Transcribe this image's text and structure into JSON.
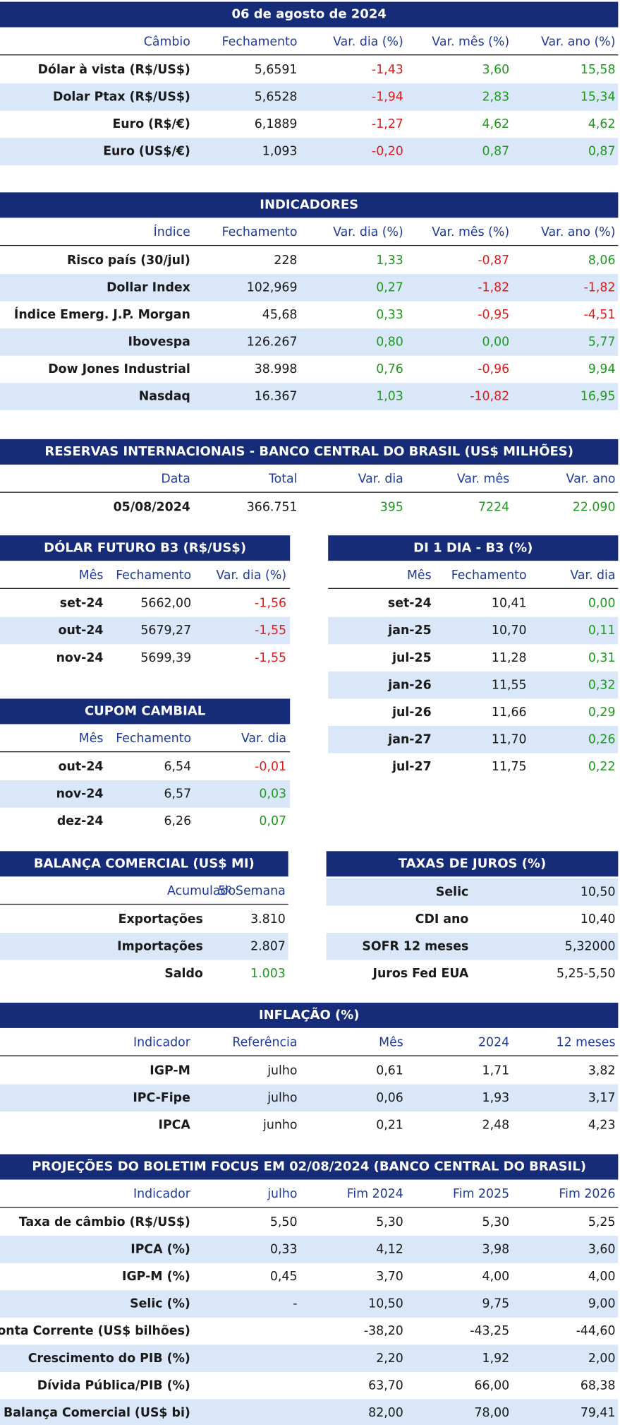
{
  "cambio": {
    "title": "06 de agosto de 2024",
    "columns": [
      "Câmbio",
      "Fechamento",
      "Var. dia (%)",
      "Var. mês (%)",
      "Var. ano (%)"
    ],
    "rows": [
      [
        "Dólar à vista (R$/US$)",
        "5,6591",
        "-1,43",
        "3,60",
        "15,58"
      ],
      [
        "Dolar Ptax (R$/US$)",
        "5,6528",
        "-1,94",
        "2,83",
        "15,34"
      ],
      [
        "Euro (R$/€)",
        "6,1889",
        "-1,27",
        "4,62",
        "4,62"
      ],
      [
        "Euro (US$/€)",
        "1,093",
        "-0,20",
        "0,87",
        "0,87"
      ]
    ]
  },
  "indicadores": {
    "title": "INDICADORES",
    "columns": [
      "Índice",
      "Fechamento",
      "Var. dia (%)",
      "Var. mês (%)",
      "Var. ano (%)"
    ],
    "rows": [
      [
        "Risco país (30/jul)",
        "228",
        "1,33",
        "-0,87",
        "8,06"
      ],
      [
        "Dollar Index",
        "102,969",
        "0,27",
        "-1,82",
        "-1,82"
      ],
      [
        "Índice Emerg. J.P. Morgan",
        "45,68",
        "0,33",
        "-0,95",
        "-4,51"
      ],
      [
        "Ibovespa",
        "126.267",
        "0,80",
        "0,00",
        "5,77"
      ],
      [
        "Dow Jones Industrial",
        "38.998",
        "0,76",
        "-0,96",
        "9,94"
      ],
      [
        "Nasdaq",
        "16.367",
        "1,03",
        "-10,82",
        "16,95"
      ]
    ]
  },
  "reservas": {
    "title": "RESERVAS INTERNACIONAIS - BANCO CENTRAL DO BRASIL (US$ MILHÕES)",
    "columns": [
      "Data",
      "Total",
      "Var. dia",
      "Var. mês",
      "Var. ano"
    ],
    "rows": [
      [
        "05/08/2024",
        "366.751",
        "395",
        "7224",
        "22.090"
      ]
    ]
  },
  "dolar_futuro": {
    "title": "DÓLAR FUTURO B3 (R$/US$)",
    "columns": [
      "Mês",
      "Fechamento",
      "Var. dia (%)"
    ],
    "rows": [
      [
        "set-24",
        "5662,00",
        "-1,56"
      ],
      [
        "out-24",
        "5679,27",
        "-1,55"
      ],
      [
        "nov-24",
        "5699,39",
        "-1,55"
      ]
    ]
  },
  "di_1_dia": {
    "title": "DI 1 DIA - B3 (%)",
    "columns": [
      "Mês",
      "Fechamento",
      "Var. dia"
    ],
    "rows": [
      [
        "set-24",
        "10,41",
        "0,00"
      ],
      [
        "jan-25",
        "10,70",
        "0,11"
      ],
      [
        "jul-25",
        "11,28",
        "0,31"
      ],
      [
        "jan-26",
        "11,55",
        "0,32"
      ],
      [
        "jul-26",
        "11,66",
        "0,29"
      ],
      [
        "jan-27",
        "11,70",
        "0,26"
      ],
      [
        "jul-27",
        "11,75",
        "0,22"
      ]
    ]
  },
  "cupom_cambial": {
    "title": "CUPOM CAMBIAL",
    "columns": [
      "Mês",
      "Fechamento",
      "Var. dia"
    ],
    "rows": [
      [
        "out-24",
        "6,54",
        "-0,01"
      ],
      [
        "nov-24",
        "6,57",
        "0,03"
      ],
      [
        "dez-24",
        "6,26",
        "0,07"
      ]
    ]
  },
  "balanca_comercial": {
    "title": "BALANÇA COMERCIAL (US$ MI)",
    "columns": [
      "5º Semana",
      "Acumulado"
    ],
    "rows": [
      [
        "Exportações",
        "3.810"
      ],
      [
        "Importações",
        "2.807"
      ],
      [
        "Saldo",
        "1.003"
      ]
    ]
  },
  "taxas_de_juros": {
    "title": "TAXAS DE JUROS (%)",
    "rows": [
      [
        "Selic",
        "10,50"
      ],
      [
        "CDI ano",
        "10,40"
      ],
      [
        "SOFR 12 meses",
        "5,32000"
      ],
      [
        "Juros Fed EUA",
        "5,25-5,50"
      ]
    ]
  },
  "inflacao": {
    "title": "INFLAÇÃO (%)",
    "columns": [
      "Indicador",
      "Referência",
      "Mês",
      "2024",
      "12 meses"
    ],
    "rows": [
      [
        "IGP-M",
        "julho",
        "0,61",
        "1,71",
        "3,82"
      ],
      [
        "IPC-Fipe",
        "julho",
        "0,06",
        "1,93",
        "3,17"
      ],
      [
        "IPCA",
        "junho",
        "0,21",
        "2,48",
        "4,23"
      ]
    ]
  },
  "focus": {
    "title": "PROJEÇÕES DO BOLETIM FOCUS EM 02/08/2024 (BANCO CENTRAL DO BRASIL)",
    "columns": [
      "Indicador",
      "julho",
      "Fim 2024",
      "Fim 2025",
      "Fim 2026"
    ],
    "rows": [
      [
        "Taxa de câmbio (R$/US$)",
        "5,50",
        "5,30",
        "5,30",
        "5,25"
      ],
      [
        "IPCA (%)",
        "0,33",
        "4,12",
        "3,98",
        "3,60"
      ],
      [
        "IGP-M (%)",
        "0,45",
        "3,70",
        "4,00",
        "4,00"
      ],
      [
        "Selic (%)",
        "-",
        "10,50",
        "9,75",
        "9,00"
      ],
      [
        "Conta Corrente (US$ bilhões)",
        null,
        "-38,20",
        "-43,25",
        "-44,60"
      ],
      [
        "Crescimento do PIB (%)",
        null,
        "2,20",
        "1,92",
        "2,00"
      ],
      [
        "Dívida Pública/PIB (%)",
        null,
        "63,70",
        "66,00",
        "68,38"
      ],
      [
        "Balança Comercial (US$ bi)",
        null,
        "82,00",
        "78,00",
        "79,41"
      ]
    ]
  }
}
